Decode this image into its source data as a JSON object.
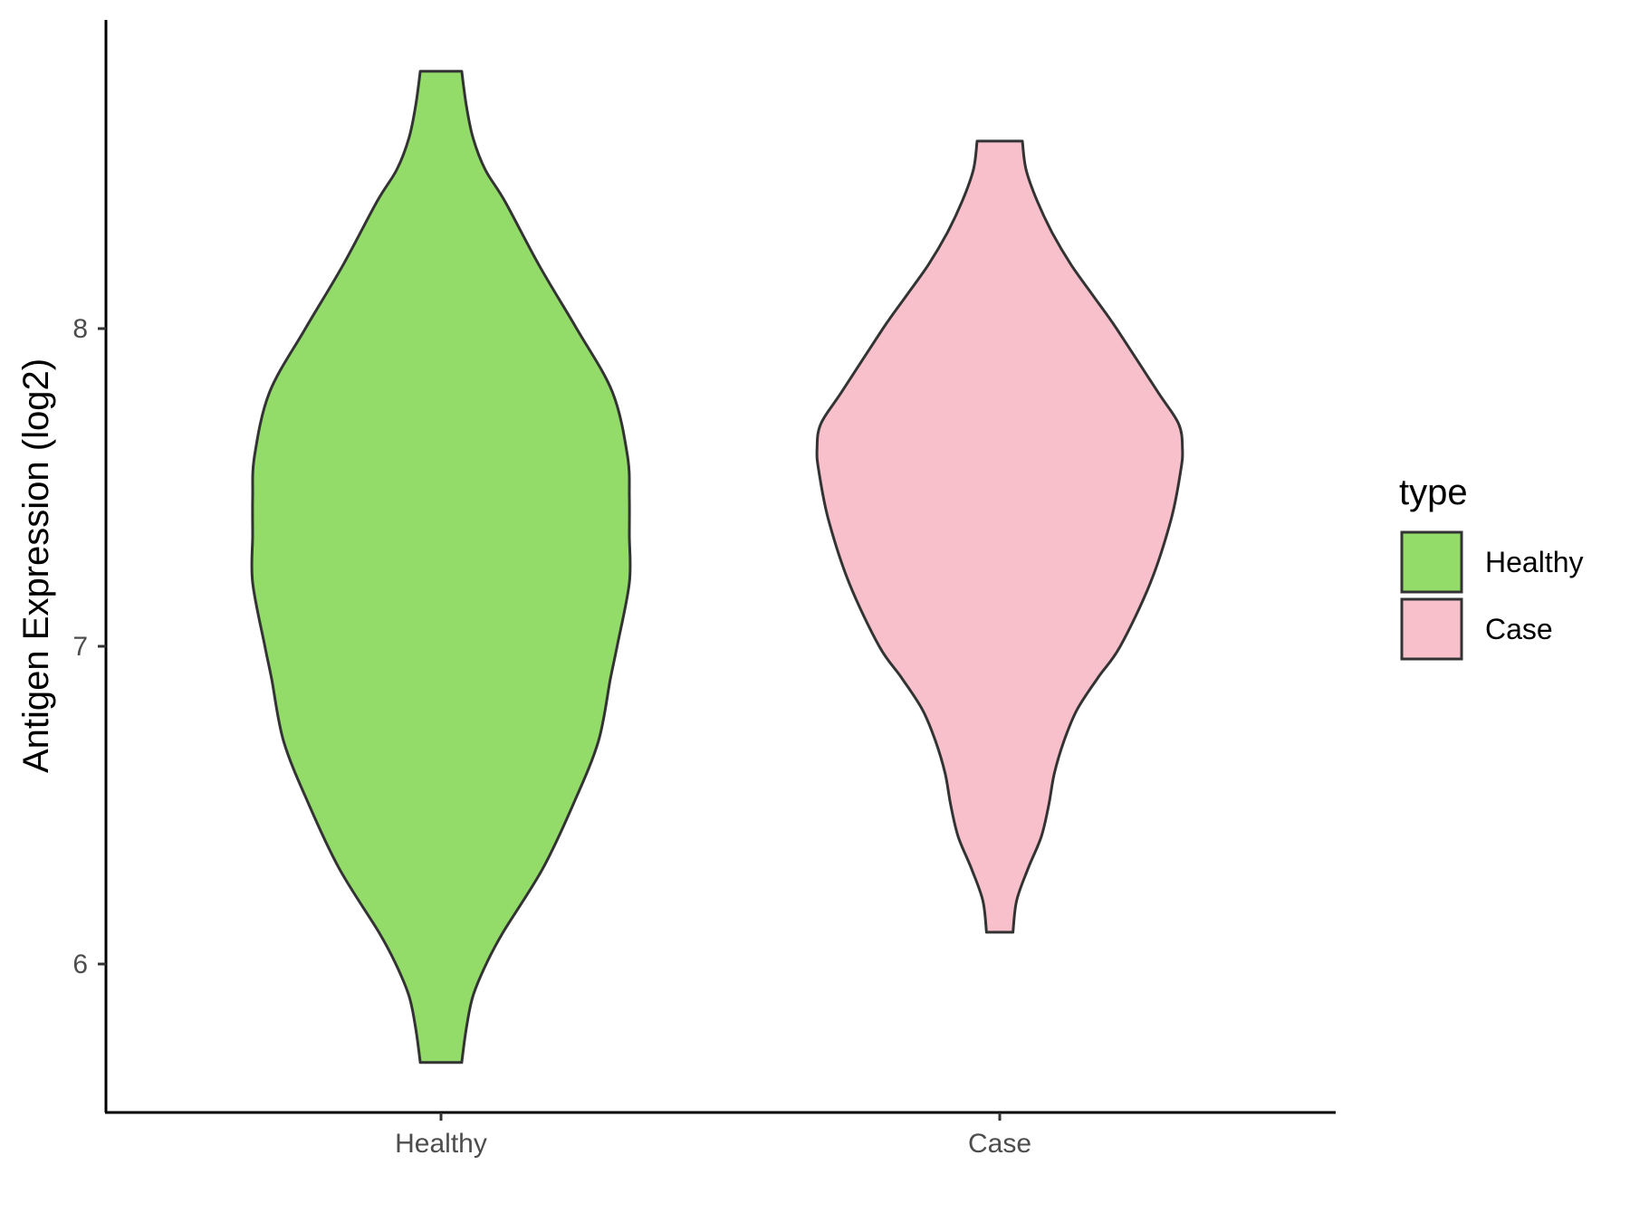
{
  "chart_data": {
    "type": "violin",
    "title": "",
    "xlabel": "",
    "ylabel": "Antigen Expression (log2)",
    "ylim": [
      5.55,
      9.0
    ],
    "yticks": [
      6,
      7,
      8
    ],
    "grid": false,
    "legend": {
      "title": "type",
      "placement": "right"
    },
    "categories": [
      "Healthy",
      "Case"
    ],
    "series": [
      {
        "name": "Healthy",
        "color": "#93dc6a",
        "profile": [
          [
            5.69,
            0.11
          ],
          [
            5.8,
            0.135
          ],
          [
            5.9,
            0.17
          ],
          [
            6.0,
            0.24
          ],
          [
            6.1,
            0.33
          ],
          [
            6.3,
            0.54
          ],
          [
            6.5,
            0.7
          ],
          [
            6.7,
            0.835
          ],
          [
            6.9,
            0.9
          ],
          [
            7.0,
            0.935
          ],
          [
            7.2,
            1.0
          ],
          [
            7.35,
            1.0
          ],
          [
            7.47,
            1.0
          ],
          [
            7.6,
            0.99
          ],
          [
            7.8,
            0.91
          ],
          [
            8.0,
            0.72
          ],
          [
            8.2,
            0.52
          ],
          [
            8.4,
            0.34
          ],
          [
            8.5,
            0.235
          ],
          [
            8.6,
            0.17
          ],
          [
            8.7,
            0.135
          ],
          [
            8.81,
            0.11
          ]
        ]
      },
      {
        "name": "Case",
        "color": "#f8c0cb",
        "profile": [
          [
            6.1,
            0.07
          ],
          [
            6.2,
            0.09
          ],
          [
            6.3,
            0.15
          ],
          [
            6.4,
            0.22
          ],
          [
            6.5,
            0.26
          ],
          [
            6.6,
            0.29
          ],
          [
            6.7,
            0.34
          ],
          [
            6.8,
            0.41
          ],
          [
            6.9,
            0.52
          ],
          [
            7.0,
            0.64
          ],
          [
            7.2,
            0.8
          ],
          [
            7.4,
            0.91
          ],
          [
            7.55,
            0.96
          ],
          [
            7.62,
            0.97
          ],
          [
            7.7,
            0.95
          ],
          [
            7.8,
            0.84
          ],
          [
            8.0,
            0.62
          ],
          [
            8.1,
            0.5
          ],
          [
            8.2,
            0.38
          ],
          [
            8.3,
            0.28
          ],
          [
            8.4,
            0.2
          ],
          [
            8.5,
            0.14
          ],
          [
            8.59,
            0.12
          ]
        ]
      }
    ]
  }
}
